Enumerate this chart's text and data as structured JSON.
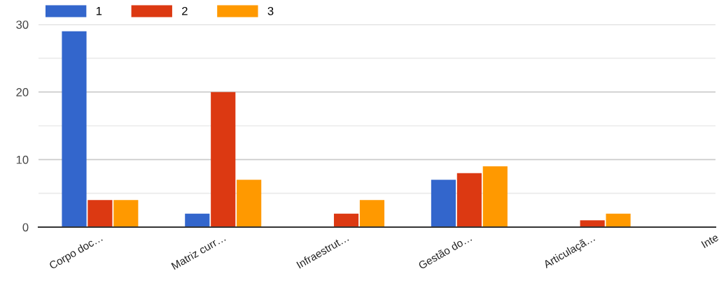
{
  "chart_data": {
    "type": "bar",
    "categories": [
      "Corpo doc…",
      "Matriz curr…",
      "Infraestrut…",
      "Gestão do…",
      "Articulaçã…",
      "Inte"
    ],
    "series": [
      {
        "name": "1",
        "color": "#3366cc",
        "values": [
          29,
          2,
          0,
          7,
          0,
          null
        ]
      },
      {
        "name": "2",
        "color": "#dc3912",
        "values": [
          4,
          20,
          2,
          8,
          1,
          null
        ]
      },
      {
        "name": "3",
        "color": "#ff9900",
        "values": [
          4,
          7,
          4,
          9,
          2,
          null
        ]
      }
    ],
    "ylim": [
      0,
      30
    ],
    "yticks": [
      0,
      {
        "value": 5,
        "label": null
      },
      10,
      {
        "value": 15,
        "label": null
      },
      20,
      {
        "value": 25,
        "label": null
      },
      30
    ],
    "grid": "y",
    "legend": "top left"
  }
}
